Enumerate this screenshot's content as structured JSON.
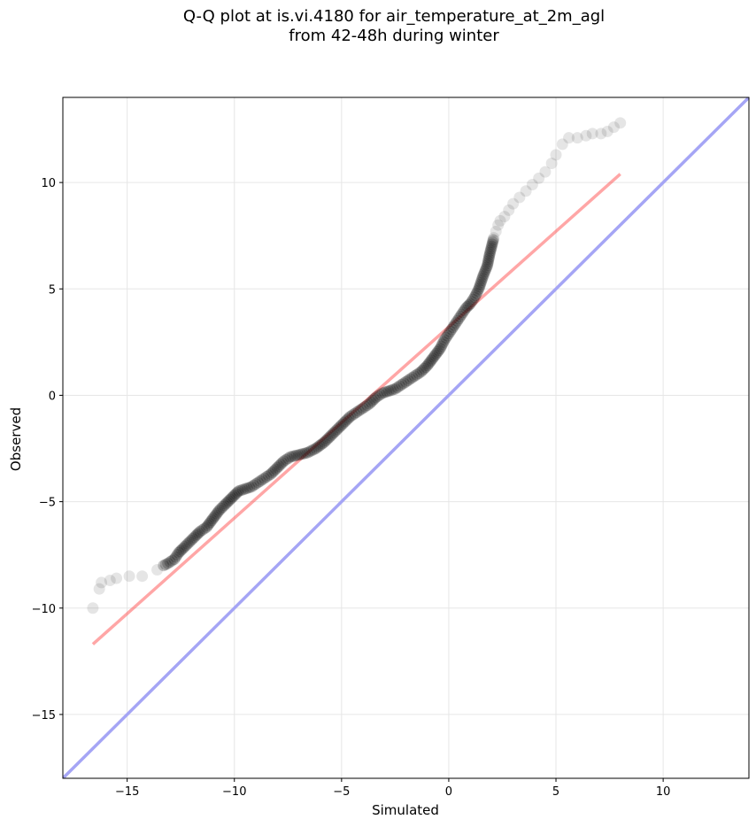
{
  "chart_data": {
    "type": "scatter",
    "title_line1": "Q-Q plot at is.vi.4180 for air_temperature_at_2m_agl",
    "title_line2": "from 42-48h during winter",
    "xlabel": "Simulated",
    "ylabel": "Observed",
    "xlim": [
      -18,
      14
    ],
    "ylim": [
      -18,
      14
    ],
    "xticks": [
      -15,
      -10,
      -5,
      0,
      5,
      10
    ],
    "yticks": [
      -15,
      -10,
      -5,
      0,
      5,
      10
    ],
    "xtick_labels": [
      "−15",
      "−10",
      "−5",
      "0",
      "5",
      "10"
    ],
    "ytick_labels": [
      "−15",
      "−10",
      "−5",
      "0",
      "5",
      "10"
    ],
    "grid": true,
    "quantile_points": {
      "x": [
        -16.6,
        -16.3,
        -16.2,
        -15.8,
        -15.5,
        -14.9,
        -14.3,
        -13.6,
        -13.3,
        -13.1,
        -12.8,
        -12.6,
        -12.4,
        -12.1,
        -11.8,
        -11.6,
        -11.3,
        -11.0,
        -10.7,
        -10.4,
        -10.2,
        -10.0,
        -9.8,
        -9.5,
        -9.2,
        -8.9,
        -8.6,
        -8.3,
        -8.0,
        -7.7,
        -7.4,
        -7.0,
        -6.6,
        -6.2,
        -5.8,
        -5.5,
        -5.2,
        -4.9,
        -4.6,
        -4.3,
        -4.0,
        -3.7,
        -3.4,
        -3.1,
        -2.8,
        -2.5,
        -2.2,
        -1.9,
        -1.6,
        -1.3,
        -1.0,
        -0.7,
        -0.4,
        -0.2,
        0.0,
        0.2,
        0.4,
        0.6,
        0.8,
        1.0,
        1.2,
        1.4,
        1.6,
        1.8,
        1.9,
        2.0,
        2.1,
        2.2,
        2.3,
        2.4,
        2.6,
        2.8,
        3.0,
        3.3,
        3.6,
        3.9,
        4.2,
        4.5,
        4.8,
        5.0,
        5.3,
        5.6,
        6.0,
        6.4,
        6.7,
        7.1,
        7.4,
        7.7,
        8.0
      ],
      "y": [
        -10.0,
        -9.1,
        -8.8,
        -8.7,
        -8.6,
        -8.5,
        -8.5,
        -8.2,
        -8.0,
        -7.9,
        -7.7,
        -7.4,
        -7.2,
        -6.9,
        -6.6,
        -6.4,
        -6.2,
        -5.8,
        -5.4,
        -5.1,
        -4.9,
        -4.7,
        -4.5,
        -4.4,
        -4.3,
        -4.1,
        -3.9,
        -3.7,
        -3.4,
        -3.1,
        -2.9,
        -2.8,
        -2.7,
        -2.5,
        -2.2,
        -1.9,
        -1.6,
        -1.3,
        -1.0,
        -0.8,
        -0.6,
        -0.4,
        -0.1,
        0.1,
        0.2,
        0.3,
        0.5,
        0.7,
        0.9,
        1.1,
        1.4,
        1.8,
        2.2,
        2.6,
        2.9,
        3.2,
        3.5,
        3.8,
        4.1,
        4.3,
        4.6,
        5.0,
        5.6,
        6.1,
        6.6,
        7.0,
        7.4,
        7.7,
        8.0,
        8.2,
        8.4,
        8.7,
        9.0,
        9.3,
        9.6,
        9.9,
        10.2,
        10.5,
        10.9,
        11.3,
        11.8,
        12.1,
        12.1,
        12.2,
        12.3,
        12.3,
        12.4,
        12.6,
        12.8
      ]
    },
    "fit_line": {
      "x": [
        -16.6,
        8.0
      ],
      "y": [
        -11.7,
        10.4
      ],
      "color": "#f59a9a"
    },
    "identity_line": {
      "x": [
        -18,
        14
      ],
      "y": [
        -18,
        14
      ],
      "color": "#a5a5f5"
    },
    "point_color": "#000000"
  }
}
